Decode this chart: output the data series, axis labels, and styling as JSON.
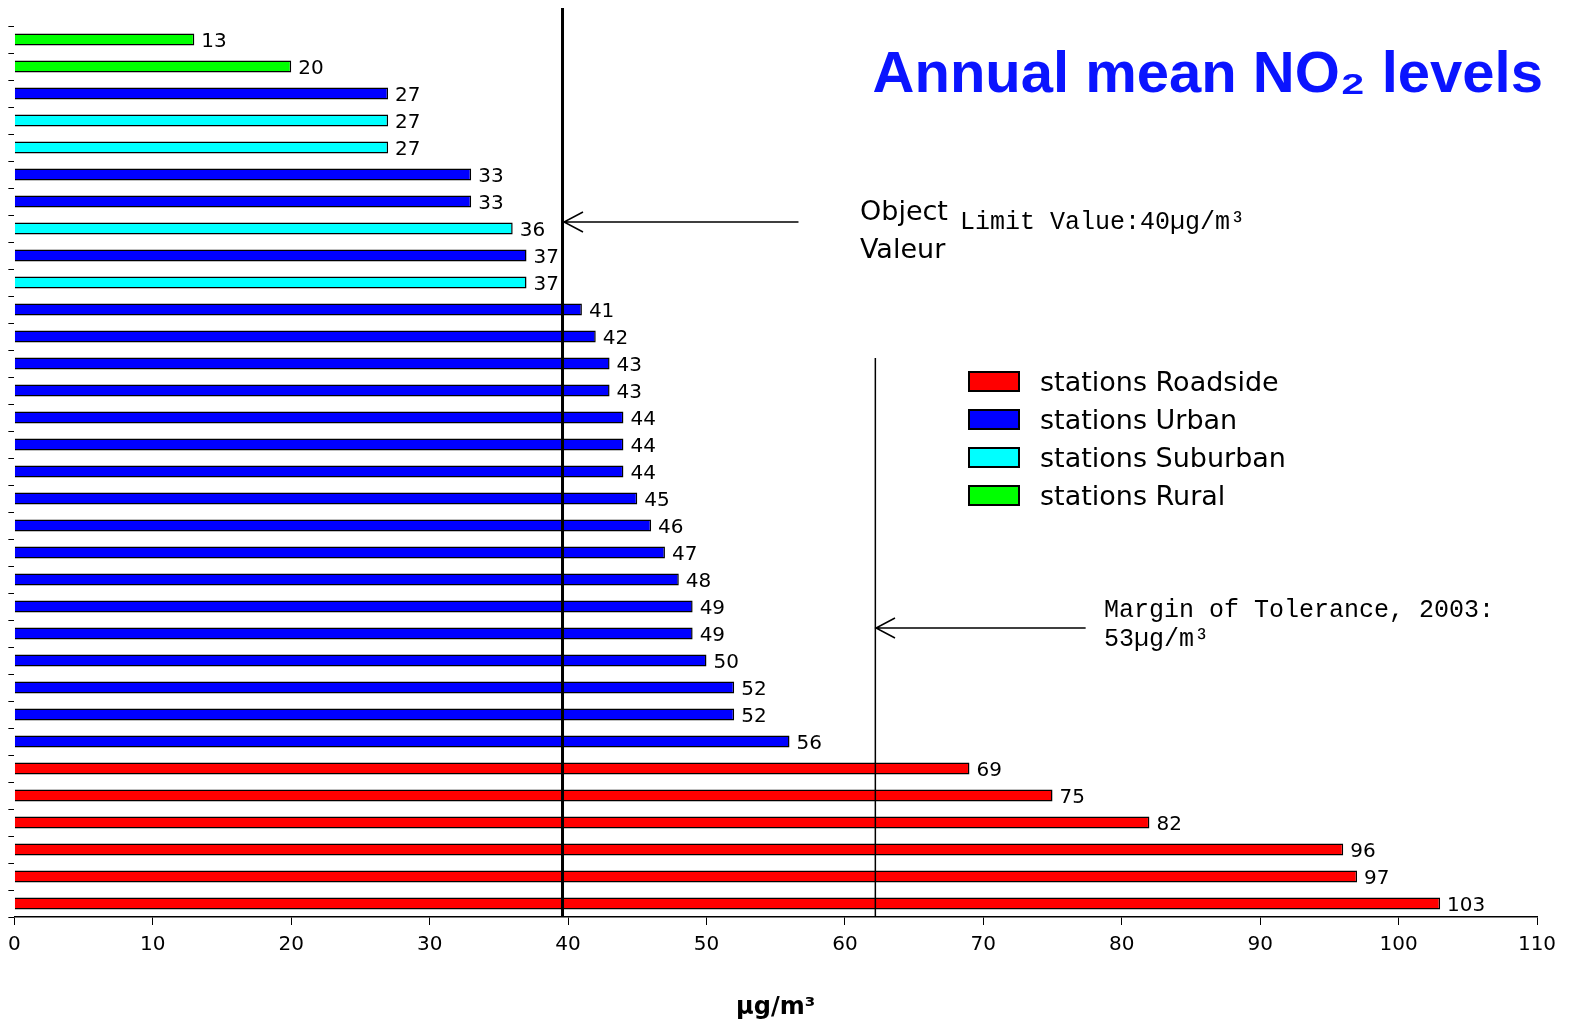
{
  "chart_data": {
    "type": "bar",
    "orientation": "horizontal",
    "title": "Annual mean NO₂ levels",
    "xlabel": "µg/m³",
    "categories": [
      null,
      null,
      null,
      null,
      null,
      null,
      null,
      null,
      null,
      null,
      null,
      null,
      null,
      null,
      null,
      null,
      null,
      null,
      null,
      null,
      null,
      null,
      null,
      null,
      null,
      null,
      null,
      null,
      null,
      null,
      null,
      null,
      null
    ],
    "series": [
      {
        "name": "stations Roadside",
        "color": "#ff0000",
        "values": [
          null,
          null,
          null,
          null,
          null,
          null,
          null,
          null,
          null,
          null,
          null,
          null,
          null,
          null,
          null,
          null,
          null,
          null,
          null,
          null,
          null,
          null,
          null,
          null,
          null,
          null,
          null,
          69,
          75,
          82,
          96,
          97,
          103
        ]
      },
      {
        "name": "stations Urban",
        "color": "#0000ff",
        "values": [
          null,
          null,
          27,
          null,
          null,
          33,
          33,
          null,
          37,
          null,
          41,
          42,
          43,
          43,
          44,
          44,
          44,
          45,
          46,
          47,
          48,
          49,
          49,
          50,
          52,
          52,
          56,
          null,
          null,
          null,
          null,
          null,
          null
        ]
      },
      {
        "name": "stations Suburban",
        "color": "#00ffff",
        "values": [
          null,
          null,
          null,
          27,
          27,
          null,
          null,
          36,
          null,
          37,
          null,
          null,
          null,
          null,
          null,
          null,
          null,
          null,
          null,
          null,
          null,
          null,
          null,
          null,
          null,
          null,
          null,
          null,
          null,
          null,
          null,
          null,
          null
        ]
      },
      {
        "name": "stations Rural",
        "color": "#00ff00",
        "values": [
          13,
          20,
          null,
          null,
          null,
          null,
          null,
          null,
          null,
          null,
          null,
          null,
          null,
          null,
          null,
          null,
          null,
          null,
          null,
          null,
          null,
          null,
          null,
          null,
          null,
          null,
          null,
          null,
          null,
          null,
          null,
          null,
          null
        ]
      }
    ],
    "xlim": [
      0,
      110
    ],
    "xticks": [
      0,
      10,
      20,
      30,
      40,
      50,
      60,
      70,
      80,
      90,
      100,
      110
    ],
    "tick_labels": "x",
    "grid": false,
    "legend": "right",
    "data_labels": true,
    "stacked": true,
    "ref_lines": [
      {
        "axis": "x",
        "value": 39.6
      },
      {
        "axis": "x",
        "value": 62.2
      }
    ],
    "annotations": [
      "Object Valeur",
      "Limit Value:40µg/m³",
      "Margin of Tolerance, 2003: 53µg/m³"
    ]
  }
}
